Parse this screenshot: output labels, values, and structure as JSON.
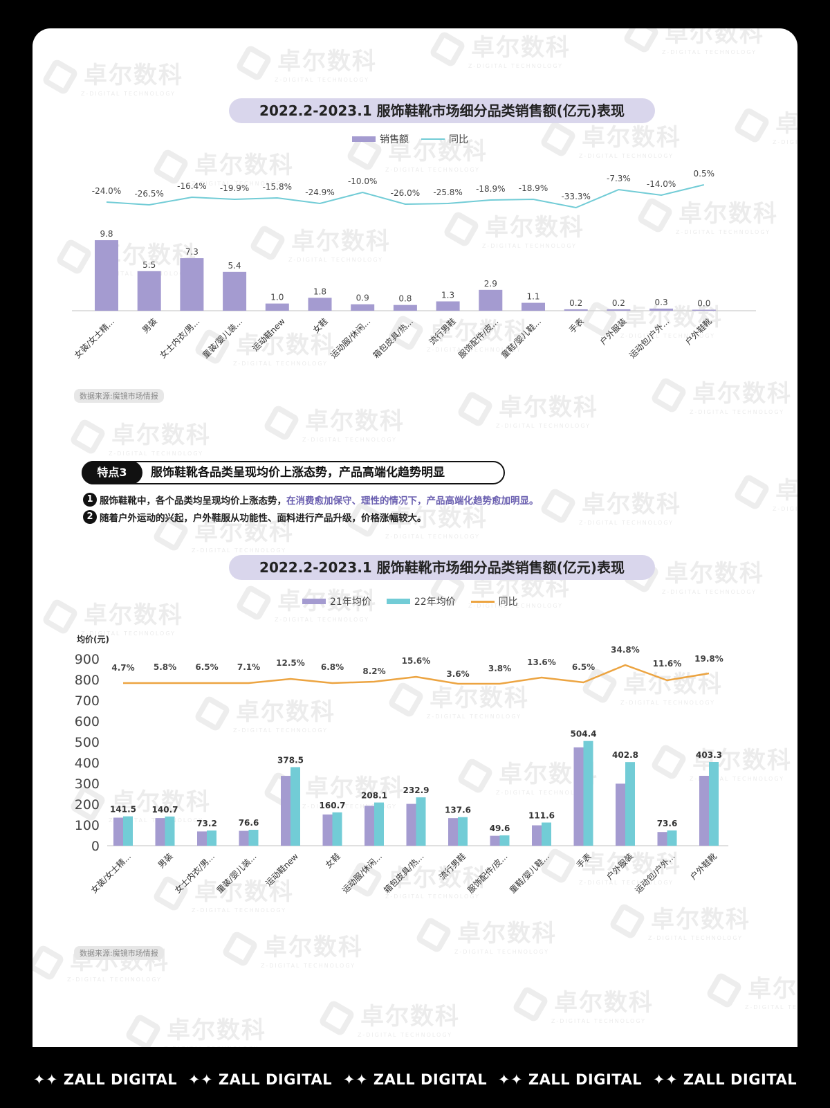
{
  "watermark": {
    "text": "卓尔数科",
    "subtext": "Z-DIGITAL TECHNOLOGY"
  },
  "chart1": {
    "title": "2022.2-2023.1 服饰鞋靴市场细分品类销售额(亿元)表现",
    "legend": {
      "bar": "销售额",
      "line": "同比"
    },
    "source": "数据来源:魔镜市场情报"
  },
  "feature": {
    "tag": "特点3",
    "title": "服饰鞋靴各品类呈现均价上涨态势，产品高端化趋势明显",
    "points": [
      {
        "num": "1",
        "text": "服饰鞋靴中，各个品类均呈现均价上涨态势，",
        "highlight": "在消费愈加保守、理性的情况下，产品高端化趋势愈加明显。"
      },
      {
        "num": "2",
        "text": "随着户外运动的兴起，户外鞋服从功能性、面料进行产品升级，价格涨幅较大。",
        "highlight": ""
      }
    ]
  },
  "chart2": {
    "title": "2022.2-2023.1 服饰鞋靴市场细分品类销售额(亿元)表现",
    "legend": {
      "bar1": "21年均价",
      "bar2": "22年均价",
      "line": "同比"
    },
    "ylabel": "均价(元)",
    "source": "数据来源:魔镜市场情报"
  },
  "footer": {
    "brand": "✦✦ ZALL DIGITAL",
    "repeat": 5
  },
  "colors": {
    "purple": "#a49bd0",
    "teal": "#72ccd6",
    "orange": "#eca441",
    "title_bg": "#d9d6ec",
    "highlight": "#6a5fb0"
  },
  "chart_data": [
    {
      "type": "bar",
      "title": "2022.2-2023.1 服饰鞋靴市场细分品类销售额(亿元)表现",
      "categories": [
        "女装/女士精...",
        "男装",
        "女士内衣/男...",
        "童装/婴儿装...",
        "运动鞋new",
        "女鞋",
        "运动服/休闲...",
        "箱包皮具/热...",
        "流行男鞋",
        "服饰配件/皮...",
        "童鞋/婴儿鞋...",
        "手表",
        "户外服装",
        "运动包/户外...",
        "户外鞋靴"
      ],
      "series": [
        {
          "name": "销售额",
          "type": "bar",
          "color": "#a49bd0",
          "values": [
            9.8,
            5.5,
            7.3,
            5.4,
            1.0,
            1.8,
            0.9,
            0.8,
            1.3,
            2.9,
            1.1,
            0.2,
            0.2,
            0.3,
            0.0
          ]
        },
        {
          "name": "同比",
          "type": "line",
          "color": "#72ccd6",
          "values": [
            "-24.0%",
            "-26.5%",
            "-16.4%",
            "-19.9%",
            "-15.8%",
            "-24.9%",
            "-10.0%",
            "-26.0%",
            "-25.8%",
            "-18.9%",
            "-18.9%",
            "-33.3%",
            "-7.3%",
            "-14.0%",
            "0.5%"
          ]
        }
      ],
      "xlabel": "",
      "ylabel": "",
      "legend_position": "top",
      "grid": false
    },
    {
      "type": "bar",
      "title": "2022.2-2023.1 服饰鞋靴市场细分品类销售额(亿元)表现",
      "categories": [
        "女装/女士精...",
        "男装",
        "女士内衣/男...",
        "童装/婴儿装...",
        "运动鞋new",
        "女鞋",
        "运动服/休闲...",
        "箱包皮具/热...",
        "流行男鞋",
        "服饰配件/皮...",
        "童鞋/婴儿鞋...",
        "手表",
        "户外服装",
        "运动包/户外...",
        "户外鞋靴"
      ],
      "series": [
        {
          "name": "21年均价",
          "type": "bar",
          "color": "#a49bd0",
          "values": [
            135.1,
            133.0,
            68.7,
            71.5,
            336.4,
            150.5,
            192.3,
            201.5,
            132.8,
            47.8,
            98.2,
            473.6,
            298.8,
            66.0,
            336.6
          ]
        },
        {
          "name": "22年均价",
          "type": "bar",
          "color": "#72ccd6",
          "values": [
            141.5,
            140.7,
            73.2,
            76.6,
            378.5,
            160.7,
            208.1,
            232.9,
            137.6,
            49.6,
            111.6,
            504.4,
            402.8,
            73.6,
            403.3
          ]
        },
        {
          "name": "同比",
          "type": "line",
          "color": "#eca441",
          "values": [
            "4.7%",
            "5.8%",
            "6.5%",
            "7.1%",
            "12.5%",
            "6.8%",
            "8.2%",
            "15.6%",
            "3.6%",
            "3.8%",
            "13.6%",
            "6.5%",
            "34.8%",
            "11.6%",
            "19.8%"
          ]
        }
      ],
      "xlabel": "",
      "ylabel": "均价(元)",
      "yticks": [
        0,
        100,
        200,
        300,
        400,
        500,
        600,
        700,
        800,
        900
      ],
      "ylim": [
        0,
        900
      ],
      "legend_position": "top",
      "grid": false
    }
  ]
}
